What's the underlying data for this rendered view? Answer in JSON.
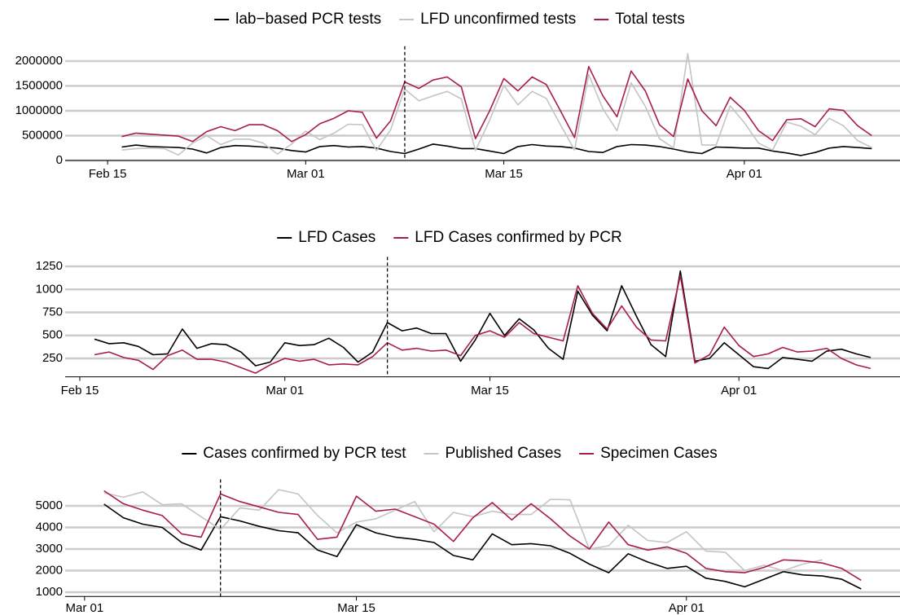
{
  "chart_data": [
    {
      "type": "line",
      "x": [
        "02-16",
        "02-17",
        "02-18",
        "02-19",
        "02-20",
        "02-21",
        "02-22",
        "02-23",
        "02-24",
        "02-25",
        "02-26",
        "02-27",
        "02-28",
        "03-01",
        "03-02",
        "03-03",
        "03-04",
        "03-05",
        "03-06",
        "03-07",
        "03-08",
        "03-09",
        "03-10",
        "03-11",
        "03-12",
        "03-13",
        "03-14",
        "03-15",
        "03-16",
        "03-17",
        "03-18",
        "03-19",
        "03-20",
        "03-21",
        "03-22",
        "03-23",
        "03-24",
        "03-25",
        "03-26",
        "03-27",
        "03-28",
        "03-29",
        "03-30",
        "03-31",
        "04-01",
        "04-02",
        "04-03",
        "04-04",
        "04-05",
        "04-06",
        "04-07",
        "04-08",
        "04-09",
        "04-10"
      ],
      "series": [
        {
          "name": "lab−based PCR tests",
          "color": "#000000",
          "values": [
            270000,
            310000,
            280000,
            270000,
            260000,
            230000,
            150000,
            260000,
            300000,
            290000,
            270000,
            250000,
            200000,
            170000,
            280000,
            300000,
            270000,
            280000,
            250000,
            180000,
            140000,
            230000,
            330000,
            290000,
            240000,
            240000,
            190000,
            140000,
            280000,
            320000,
            290000,
            280000,
            250000,
            180000,
            160000,
            280000,
            320000,
            310000,
            280000,
            230000,
            170000,
            140000,
            270000,
            260000,
            250000,
            250000,
            190000,
            150000,
            100000,
            160000,
            250000,
            280000,
            260000,
            240000
          ]
        },
        {
          "name": "LFD unconfirmed tests",
          "color": "#c4c4c4",
          "values": [
            210000,
            240000,
            250000,
            240000,
            110000,
            350000,
            500000,
            320000,
            430000,
            430000,
            350000,
            130000,
            330000,
            590000,
            420000,
            550000,
            730000,
            720000,
            200000,
            620000,
            1440000,
            1200000,
            1300000,
            1390000,
            1240000,
            200000,
            810000,
            1510000,
            1120000,
            1390000,
            1250000,
            720000,
            210000,
            1730000,
            1040000,
            600000,
            1560000,
            1090000,
            440000,
            250000,
            2150000,
            310000,
            310000,
            1100000,
            760000,
            350000,
            210000,
            770000,
            690000,
            520000,
            850000,
            700000,
            400000,
            260000
          ]
        },
        {
          "name": "Total tests",
          "color": "#a81c50",
          "values": [
            480000,
            550000,
            530000,
            510000,
            490000,
            380000,
            580000,
            680000,
            600000,
            720000,
            720000,
            600000,
            380000,
            520000,
            740000,
            850000,
            1000000,
            970000,
            450000,
            800000,
            1580000,
            1450000,
            1620000,
            1680000,
            1480000,
            440000,
            1000000,
            1650000,
            1400000,
            1680000,
            1530000,
            1000000,
            460000,
            1890000,
            1300000,
            880000,
            1800000,
            1400000,
            720000,
            480000,
            1640000,
            1000000,
            700000,
            1270000,
            1010000,
            600000,
            400000,
            820000,
            840000,
            680000,
            1040000,
            1010000,
            700000,
            500000
          ]
        }
      ],
      "xlim": [
        "02-12",
        "04-12"
      ],
      "xticks": [
        {
          "value": "02-15",
          "label": "Feb 15"
        },
        {
          "value": "03-01",
          "label": "Mar 01"
        },
        {
          "value": "03-15",
          "label": "Mar 15"
        },
        {
          "value": "04-01",
          "label": "Apr 01"
        }
      ],
      "ylim": [
        0,
        2200000
      ],
      "yticks": [
        0,
        500000,
        1000000,
        1500000,
        2000000
      ],
      "vline": "03-08",
      "grid": true
    },
    {
      "type": "line",
      "x": [
        "02-16",
        "02-17",
        "02-18",
        "02-19",
        "02-20",
        "02-21",
        "02-22",
        "02-23",
        "02-24",
        "02-25",
        "02-26",
        "02-27",
        "02-28",
        "03-01",
        "03-02",
        "03-03",
        "03-04",
        "03-05",
        "03-06",
        "03-07",
        "03-08",
        "03-09",
        "03-10",
        "03-11",
        "03-12",
        "03-13",
        "03-14",
        "03-15",
        "03-16",
        "03-17",
        "03-18",
        "03-19",
        "03-20",
        "03-21",
        "03-22",
        "03-23",
        "03-24",
        "03-25",
        "03-26",
        "03-27",
        "03-28",
        "03-29",
        "03-30",
        "03-31",
        "04-01",
        "04-02",
        "04-03",
        "04-04",
        "04-05",
        "04-06",
        "04-07",
        "04-08",
        "04-09",
        "04-10"
      ],
      "series": [
        {
          "name": "LFD Cases",
          "color": "#000000",
          "values": [
            460,
            410,
            420,
            380,
            290,
            300,
            570,
            360,
            410,
            400,
            320,
            170,
            210,
            420,
            390,
            400,
            470,
            370,
            210,
            320,
            640,
            550,
            580,
            520,
            520,
            220,
            450,
            740,
            500,
            680,
            560,
            360,
            240,
            980,
            720,
            550,
            1040,
            710,
            400,
            270,
            1200,
            220,
            250,
            420,
            290,
            160,
            140,
            260,
            240,
            220,
            330,
            350,
            300,
            260
          ]
        },
        {
          "name": "LFD Cases confirmed by PCR",
          "color": "#a81c50",
          "values": [
            290,
            320,
            260,
            230,
            130,
            280,
            340,
            240,
            240,
            210,
            150,
            90,
            180,
            250,
            220,
            240,
            180,
            190,
            180,
            270,
            420,
            340,
            360,
            330,
            340,
            280,
            500,
            550,
            480,
            640,
            520,
            480,
            440,
            1040,
            740,
            570,
            820,
            590,
            450,
            440,
            1150,
            200,
            290,
            590,
            390,
            270,
            300,
            370,
            320,
            330,
            360,
            250,
            180,
            140
          ]
        }
      ],
      "xlim": [
        "02-14",
        "04-12"
      ],
      "xticks": [
        {
          "value": "02-15",
          "label": "Feb 15"
        },
        {
          "value": "03-01",
          "label": "Mar 01"
        },
        {
          "value": "03-15",
          "label": "Mar 15"
        },
        {
          "value": "04-01",
          "label": "Apr 01"
        }
      ],
      "ylim": [
        50,
        1300
      ],
      "yticks": [
        250,
        500,
        750,
        1000,
        1250
      ],
      "vline": "03-08",
      "grid": true
    },
    {
      "type": "line",
      "x": [
        "03-02",
        "03-03",
        "03-04",
        "03-05",
        "03-06",
        "03-07",
        "03-08",
        "03-09",
        "03-10",
        "03-11",
        "03-12",
        "03-13",
        "03-14",
        "03-15",
        "03-16",
        "03-17",
        "03-18",
        "03-19",
        "03-20",
        "03-21",
        "03-22",
        "03-23",
        "03-24",
        "03-25",
        "03-26",
        "03-27",
        "03-28",
        "03-29",
        "03-30",
        "03-31",
        "04-01",
        "04-02",
        "04-03",
        "04-04",
        "04-05",
        "04-06",
        "04-07",
        "04-08",
        "04-09",
        "04-10"
      ],
      "series": [
        {
          "name": "Cases confirmed by PCR test",
          "color": "#000000",
          "values": [
            5080,
            4450,
            4150,
            4000,
            3300,
            2950,
            4500,
            4300,
            4050,
            3850,
            3750,
            2950,
            2650,
            4130,
            3750,
            3550,
            3450,
            3300,
            2700,
            2500,
            3700,
            3200,
            3250,
            3150,
            2800,
            2300,
            1900,
            2780,
            2400,
            2100,
            2200,
            1650,
            1500,
            1250,
            1600,
            1950,
            1800,
            1750,
            1600,
            1150
          ]
        },
        {
          "name": "Published Cases",
          "color": "#c4c4c4",
          "values": [
            5600,
            5400,
            5650,
            5050,
            5100,
            4500,
            3900,
            4900,
            4800,
            5750,
            5550,
            4550,
            3750,
            4250,
            4400,
            4800,
            5200,
            3800,
            4700,
            4500,
            4750,
            4600,
            4600,
            5300,
            5280,
            3000,
            3150,
            4100,
            3400,
            3300,
            3800,
            2900,
            2850,
            2000,
            2250,
            2000,
            2300,
            2500,
            null,
            null
          ]
        },
        {
          "name": "Specimen Cases",
          "color": "#a81c50",
          "values": [
            5700,
            5100,
            4800,
            4550,
            3700,
            3550,
            5550,
            5200,
            4950,
            4700,
            4600,
            3450,
            3550,
            5450,
            4750,
            4850,
            4500,
            4150,
            3350,
            4450,
            5150,
            4350,
            5100,
            4400,
            3600,
            3000,
            4250,
            3200,
            2950,
            3100,
            2800,
            2100,
            1950,
            1900,
            2150,
            2500,
            2450,
            2350,
            2100,
            1550
          ]
        }
      ],
      "xlim": [
        "02-28",
        "04-12"
      ],
      "xticks": [
        {
          "value": "03-01",
          "label": "Mar 01"
        },
        {
          "value": "03-15",
          "label": "Mar 15"
        },
        {
          "value": "04-01",
          "label": "Apr 01"
        }
      ],
      "ylim": [
        800,
        6000
      ],
      "yticks": [
        1000,
        2000,
        3000,
        4000,
        5000
      ],
      "vline": "03-08",
      "grid": true
    }
  ]
}
